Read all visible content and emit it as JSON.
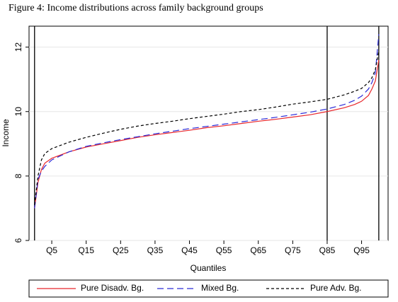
{
  "chart_data": {
    "type": "line",
    "title": "Figure 4: Income distributions across family background groups",
    "x_label": "Quantiles",
    "y_label": "Income",
    "x": [
      0,
      1,
      2,
      3,
      5,
      10,
      15,
      20,
      25,
      30,
      35,
      40,
      45,
      50,
      55,
      60,
      65,
      70,
      75,
      80,
      85,
      90,
      93,
      95,
      97,
      98,
      99,
      100
    ],
    "series": [
      {
        "name": "Pure Disadv. Bg.",
        "color": "#e8262b",
        "dash": "solid",
        "values": [
          7.0,
          7.8,
          8.2,
          8.4,
          8.55,
          8.75,
          8.9,
          9.0,
          9.1,
          9.2,
          9.28,
          9.35,
          9.42,
          9.5,
          9.56,
          9.63,
          9.7,
          9.76,
          9.83,
          9.9,
          10.0,
          10.12,
          10.22,
          10.32,
          10.5,
          10.7,
          10.95,
          11.6
        ]
      },
      {
        "name": "Mixed Bg.",
        "color": "#2b2bd8",
        "dash": "long",
        "values": [
          7.0,
          7.9,
          8.15,
          8.3,
          8.5,
          8.75,
          8.92,
          9.03,
          9.13,
          9.22,
          9.31,
          9.39,
          9.47,
          9.54,
          9.61,
          9.68,
          9.75,
          9.82,
          9.9,
          9.98,
          10.08,
          10.22,
          10.35,
          10.48,
          10.7,
          10.9,
          11.2,
          12.4
        ]
      },
      {
        "name": "Pure Adv. Bg.",
        "color": "#000000",
        "dash": "short",
        "values": [
          7.1,
          8.0,
          8.5,
          8.7,
          8.85,
          9.05,
          9.2,
          9.33,
          9.45,
          9.55,
          9.63,
          9.7,
          9.78,
          9.85,
          9.92,
          10.0,
          10.06,
          10.14,
          10.23,
          10.3,
          10.38,
          10.52,
          10.63,
          10.72,
          10.9,
          11.05,
          11.3,
          11.9
        ]
      }
    ],
    "vlines": [
      0,
      85,
      100
    ],
    "xlim": [
      -1.6,
      102.7
    ],
    "ylim": [
      6,
      12.65
    ],
    "xticks": [
      {
        "value": 5,
        "label": "Q5"
      },
      {
        "value": 15,
        "label": "Q15"
      },
      {
        "value": 25,
        "label": "Q25"
      },
      {
        "value": 35,
        "label": "Q35"
      },
      {
        "value": 45,
        "label": "Q45"
      },
      {
        "value": 55,
        "label": "Q55"
      },
      {
        "value": 65,
        "label": "Q65"
      },
      {
        "value": 75,
        "label": "Q75"
      },
      {
        "value": 85,
        "label": "Q85"
      },
      {
        "value": 95,
        "label": "Q95"
      }
    ],
    "yticks": [
      6,
      8,
      10,
      12
    ],
    "grid": true
  }
}
